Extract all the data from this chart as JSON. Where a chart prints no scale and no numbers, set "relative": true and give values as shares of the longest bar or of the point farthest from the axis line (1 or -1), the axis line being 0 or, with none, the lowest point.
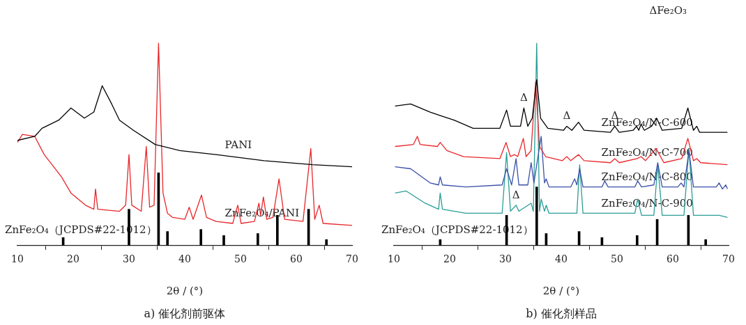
{
  "chart_data": [
    {
      "type": "line",
      "title": "a) 催化剂前驱体",
      "xlabel": "2θ / (°)",
      "relative": true,
      "xlim": [
        10,
        70
      ],
      "xticks": [
        10,
        20,
        30,
        40,
        50,
        60,
        70
      ],
      "tick_labels": "x",
      "grid": false,
      "legend": false,
      "marker": "none",
      "line_style": "solid",
      "series": [
        {
          "name": "PANI",
          "color": "#000000",
          "x": [
            10.0,
            13.1,
            14.4,
            17.4,
            19.6,
            22.0,
            23.7,
            25.2,
            26.9,
            28.3,
            30.8,
            34.7,
            39.1,
            45.6,
            54.2,
            62.9,
            70.0
          ],
          "values": [
            0.52,
            0.54,
            0.58,
            0.62,
            0.68,
            0.63,
            0.66,
            0.79,
            0.7,
            0.62,
            0.57,
            0.5,
            0.47,
            0.45,
            0.42,
            0.4,
            0.39
          ]
        },
        {
          "name": "ZnFe₂O₄/PANI",
          "color": "#e8262a",
          "x": [
            10.0,
            10.9,
            13.1,
            14.8,
            17.9,
            19.6,
            22.2,
            23.7,
            24.0,
            24.4,
            28.3,
            29.4,
            30.0,
            30.5,
            32.2,
            33.1,
            33.7,
            34.5,
            35.3,
            36.1,
            36.9,
            37.8,
            40.0,
            40.8,
            41.5,
            43.0,
            43.9,
            45.6,
            48.6,
            49.5,
            50.1,
            52.5,
            53.3,
            53.6,
            54.1,
            54.7,
            55.8,
            56.9,
            57.9,
            61.2,
            62.6,
            63.3,
            64.1,
            64.8,
            70.0
          ],
          "values": [
            0.51,
            0.55,
            0.54,
            0.45,
            0.34,
            0.26,
            0.2,
            0.18,
            0.28,
            0.18,
            0.17,
            0.2,
            0.45,
            0.2,
            0.17,
            0.49,
            0.19,
            0.2,
            1.0,
            0.26,
            0.16,
            0.14,
            0.13,
            0.19,
            0.13,
            0.25,
            0.14,
            0.12,
            0.11,
            0.2,
            0.11,
            0.12,
            0.21,
            0.15,
            0.24,
            0.13,
            0.14,
            0.33,
            0.13,
            0.12,
            0.48,
            0.13,
            0.2,
            0.11,
            0.1
          ]
        },
        {
          "name": "ZnFe₂O₄（JCPDS#22-1012）",
          "type": "bar",
          "color": "#000000",
          "x": [
            18.2,
            30.0,
            35.3,
            36.9,
            42.9,
            47.0,
            53.1,
            56.6,
            62.2,
            65.4
          ],
          "values": [
            0.04,
            0.18,
            0.36,
            0.07,
            0.08,
            0.05,
            0.06,
            0.15,
            0.18,
            0.03
          ]
        }
      ]
    },
    {
      "type": "line",
      "title": "b) 催化剂样品",
      "xlabel": "2θ / (°)",
      "relative": true,
      "xlim": [
        10,
        70
      ],
      "xticks": [
        10,
        20,
        30,
        40,
        50,
        60,
        70
      ],
      "tick_labels": "x",
      "grid": false,
      "legend": false,
      "marker": "none",
      "line_style": "solid",
      "annotations": [
        "ΔFe₂O₃",
        {
          "text": "Δ",
          "x": 33.3,
          "y": 0.68
        },
        {
          "text": "Δ",
          "x": 41.0,
          "y": 0.59
        },
        {
          "text": "Δ",
          "x": 49.6,
          "y": 0.59
        },
        {
          "text": "Δ",
          "x": 31.9,
          "y": 0.2
        }
      ],
      "series": [
        {
          "name": "ZnFe₂O₄/N-C-600",
          "color": "#000000",
          "x": [
            10.2,
            13.0,
            16.5,
            18.6,
            20.8,
            24.2,
            29.0,
            30.2,
            30.9,
            32.7,
            33.3,
            34.0,
            34.8,
            35.6,
            36.3,
            37.6,
            40.4,
            41.0,
            41.9,
            43.1,
            44.1,
            48.8,
            49.6,
            50.4,
            52.9,
            53.5,
            53.9,
            54.3,
            54.9,
            56.2,
            57.1,
            58.1,
            61.6,
            62.7,
            63.7,
            64.3,
            64.8,
            69.8
          ],
          "values": [
            0.69,
            0.7,
            0.66,
            0.64,
            0.62,
            0.58,
            0.58,
            0.67,
            0.59,
            0.59,
            0.68,
            0.59,
            0.63,
            0.82,
            0.63,
            0.58,
            0.57,
            0.59,
            0.57,
            0.61,
            0.57,
            0.56,
            0.59,
            0.56,
            0.57,
            0.59,
            0.57,
            0.6,
            0.57,
            0.59,
            0.63,
            0.57,
            0.58,
            0.68,
            0.57,
            0.59,
            0.56,
            0.56
          ]
        },
        {
          "name": "ZnFe₂O₄/N-C-700",
          "color": "#e8262a",
          "x": [
            10.2,
            13.5,
            14.2,
            14.7,
            17.8,
            18.3,
            19.5,
            22.5,
            29.0,
            30.1,
            30.9,
            31.6,
            32.2,
            33.2,
            33.7,
            34.6,
            35.4,
            36.1,
            37.2,
            40.2,
            41.0,
            41.7,
            43.1,
            44.1,
            48.8,
            49.6,
            50.4,
            53.6,
            54.3,
            55.1,
            57.0,
            58.4,
            61.6,
            62.7,
            63.7,
            64.3,
            65.0,
            69.8
          ],
          "values": [
            0.49,
            0.5,
            0.54,
            0.5,
            0.49,
            0.51,
            0.47,
            0.44,
            0.43,
            0.51,
            0.44,
            0.45,
            0.44,
            0.53,
            0.44,
            0.47,
            0.81,
            0.49,
            0.44,
            0.42,
            0.44,
            0.42,
            0.45,
            0.42,
            0.41,
            0.43,
            0.41,
            0.43,
            0.44,
            0.42,
            0.48,
            0.41,
            0.43,
            0.53,
            0.42,
            0.43,
            0.41,
            0.4
          ]
        },
        {
          "name": "ZnFe₂O₄/N-C-800",
          "color": "#3a4fa8",
          "x": [
            10.2,
            13.0,
            16.5,
            18.0,
            18.3,
            18.7,
            22.9,
            29.4,
            30.2,
            31.1,
            31.9,
            32.4,
            34.0,
            34.6,
            35.1,
            36.4,
            37.0,
            37.3,
            37.8,
            41.7,
            42.4,
            42.8,
            43.3,
            43.9,
            47.3,
            47.8,
            48.4,
            53.2,
            53.7,
            54.4,
            56.6,
            57.3,
            58.1,
            60.9,
            61.5,
            62.0,
            62.9,
            63.7,
            67.8,
            68.3,
            68.9,
            69.5,
            69.8
          ],
          "values": [
            0.39,
            0.38,
            0.31,
            0.3,
            0.34,
            0.3,
            0.29,
            0.3,
            0.38,
            0.3,
            0.43,
            0.3,
            0.3,
            0.41,
            0.31,
            0.54,
            0.31,
            0.33,
            0.29,
            0.29,
            0.33,
            0.3,
            0.38,
            0.29,
            0.29,
            0.32,
            0.29,
            0.29,
            0.32,
            0.29,
            0.3,
            0.41,
            0.29,
            0.29,
            0.31,
            0.29,
            0.47,
            0.29,
            0.29,
            0.31,
            0.28,
            0.3,
            0.28
          ]
        },
        {
          "name": "ZnFe₂O₄/N-C-900",
          "color": "#2a9d96",
          "x": [
            10.2,
            12.2,
            15.6,
            18.0,
            18.3,
            18.7,
            22.9,
            29.4,
            30.2,
            30.9,
            31.9,
            32.4,
            34.6,
            35.0,
            35.6,
            36.1,
            36.4,
            37.0,
            37.3,
            37.8,
            42.8,
            43.3,
            43.9,
            47.8,
            53.2,
            53.7,
            54.4,
            56.6,
            57.3,
            58.1,
            62.0,
            62.9,
            63.7,
            68.3,
            69.8
          ],
          "values": [
            0.26,
            0.27,
            0.21,
            0.18,
            0.26,
            0.18,
            0.16,
            0.16,
            0.46,
            0.17,
            0.2,
            0.17,
            0.21,
            0.17,
            1.0,
            0.17,
            0.23,
            0.17,
            0.2,
            0.16,
            0.16,
            0.4,
            0.16,
            0.16,
            0.16,
            0.23,
            0.15,
            0.15,
            0.4,
            0.15,
            0.15,
            0.48,
            0.15,
            0.15,
            0.14
          ]
        },
        {
          "name": "ZnFe₂O₄（JCPDS#22-1012）",
          "type": "bar",
          "color": "#000000",
          "x": [
            18.3,
            30.2,
            35.6,
            37.3,
            43.2,
            47.3,
            53.6,
            57.2,
            62.8,
            65.9
          ],
          "values": [
            0.03,
            0.15,
            0.29,
            0.06,
            0.07,
            0.04,
            0.05,
            0.13,
            0.15,
            0.03
          ]
        }
      ]
    }
  ]
}
